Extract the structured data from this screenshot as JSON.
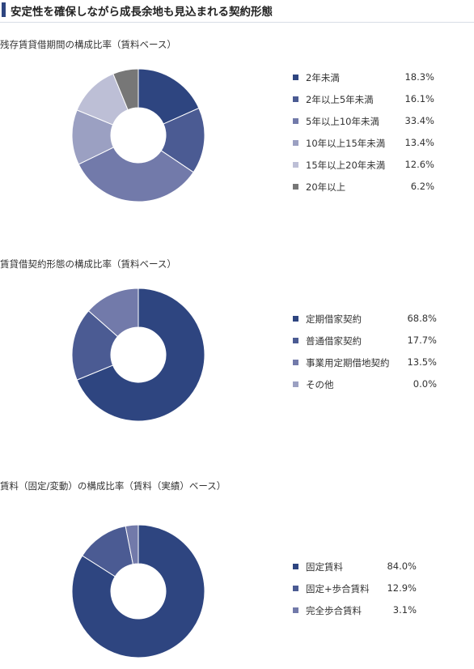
{
  "header": {
    "title": "安定性を確保しながら成長余地も見込まれる契約形態"
  },
  "colors": {
    "accent": "#2e4580",
    "series": [
      "#2e4580",
      "#4b5b93",
      "#727aaa",
      "#9ba0c2",
      "#bdbfd6",
      "#777777"
    ]
  },
  "chart_data": [
    {
      "type": "pie",
      "title": "残存賃貸借期間の構成比率（賃料ベース）",
      "categories": [
        "2年未満",
        "2年以上5年未満",
        "5年以上10年未満",
        "10年以上15年未満",
        "15年以上20年未満",
        "20年以上"
      ],
      "values": [
        18.3,
        16.1,
        33.4,
        13.4,
        12.6,
        6.2
      ],
      "value_labels": [
        "18.3%",
        "16.1%",
        "33.4%",
        "13.4%",
        "12.6%",
        "6.2%"
      ],
      "colors": [
        "#2e4580",
        "#4b5b93",
        "#727aaa",
        "#9ba0c2",
        "#bdbfd6",
        "#777777"
      ],
      "legend": "right"
    },
    {
      "type": "pie",
      "title": "賃貸借契約形態の構成比率（賃料ベース）",
      "categories": [
        "定期借家契約",
        "普通借家契約",
        "事業用定期借地契約",
        "その他"
      ],
      "values": [
        68.8,
        17.7,
        13.5,
        0.0
      ],
      "value_labels": [
        "68.8%",
        "17.7%",
        "13.5%",
        "0.0%"
      ],
      "colors": [
        "#2e4580",
        "#4b5b93",
        "#727aaa",
        "#9ba0c2"
      ],
      "legend": "right"
    },
    {
      "type": "pie",
      "title": "賃料（固定/変動）の構成比率（賃料（実績）ベース）",
      "categories": [
        "固定賃料",
        "固定+歩合賃料",
        "完全歩合賃料"
      ],
      "values": [
        84.0,
        12.9,
        3.1
      ],
      "value_labels": [
        "84.0%",
        "12.9%",
        "3.1%"
      ],
      "colors": [
        "#2e4580",
        "#4b5b93",
        "#727aaa"
      ],
      "legend": "right"
    }
  ]
}
